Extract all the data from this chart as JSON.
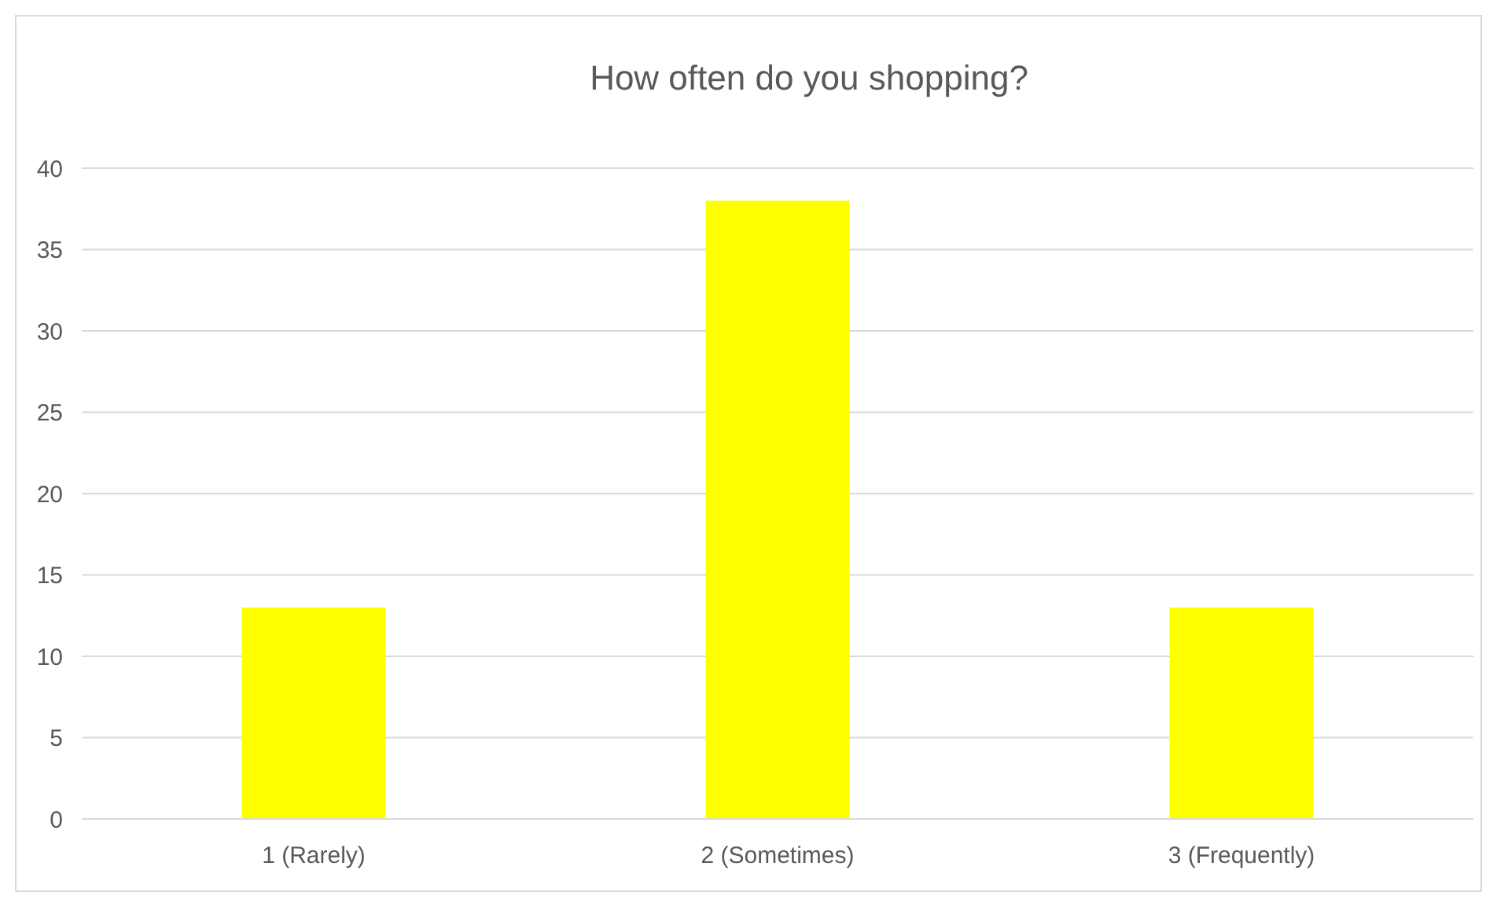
{
  "chart_data": {
    "type": "bar",
    "title": "How often do you shopping?",
    "categories": [
      "1 (Rarely)",
      "2 (Sometimes)",
      "3 (Frequently)"
    ],
    "values": [
      13,
      38,
      13
    ],
    "color": "#ffff00",
    "ylim": [
      0,
      40
    ],
    "yticks": [
      0,
      5,
      10,
      15,
      20,
      25,
      30,
      35,
      40
    ],
    "grid": "y"
  }
}
